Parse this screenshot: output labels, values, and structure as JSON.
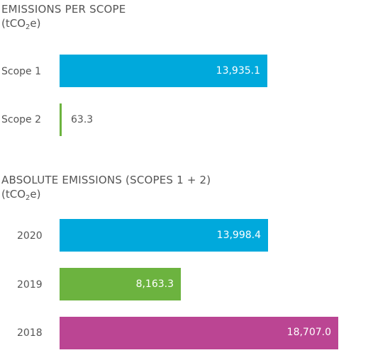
{
  "chart_data": [
    {
      "type": "bar",
      "orientation": "horizontal",
      "title": "EMISSIONS PER SCOPE",
      "unit": {
        "prefix": "(tCO",
        "sub": "2",
        "suffix": "e)"
      },
      "categories": [
        "Scope 1",
        "Scope 2"
      ],
      "values": [
        13935.1,
        63.3
      ],
      "value_labels": [
        "13,935.1",
        "63.3"
      ],
      "colors": [
        "#00a9dc",
        "#6cb33f"
      ],
      "xlim": [
        0,
        18707.0
      ]
    },
    {
      "type": "bar",
      "orientation": "horizontal",
      "title": "ABSOLUTE EMISSIONS (SCOPES 1 + 2)",
      "unit": {
        "prefix": "(tCO",
        "sub": "2",
        "suffix": "e)"
      },
      "categories": [
        "2020",
        "2019",
        "2018"
      ],
      "values": [
        13998.4,
        8163.3,
        18707.0
      ],
      "value_labels": [
        "13,998.4",
        "8,163.3",
        "18,707.0"
      ],
      "colors": [
        "#00a9dc",
        "#6cb33f",
        "#bb4593"
      ],
      "xlim": [
        0,
        18707.0
      ]
    }
  ]
}
